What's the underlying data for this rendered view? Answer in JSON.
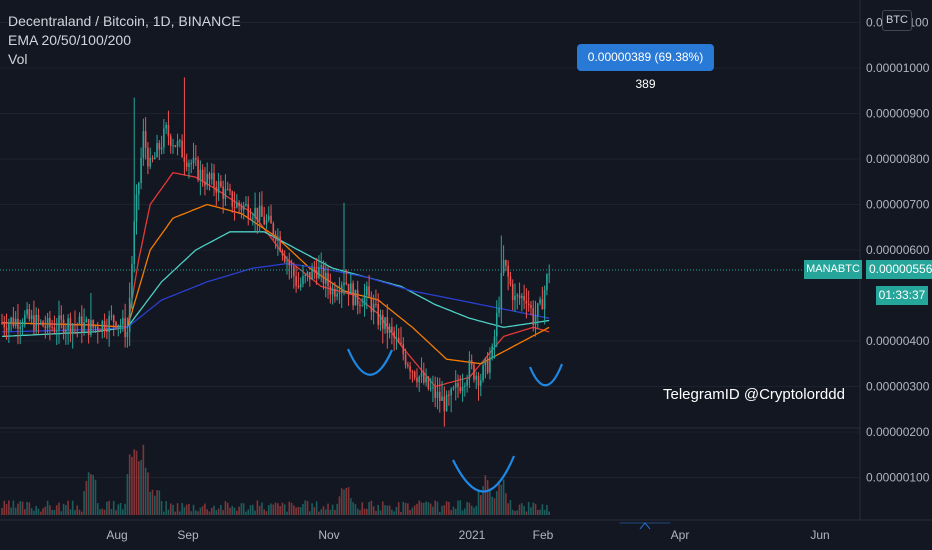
{
  "legend": {
    "title": "Decentraland / Bitcoin, 1D, BINANCE",
    "indicator": "EMA 20/50/100/200",
    "volume": "Vol"
  },
  "currency": "BTC",
  "symbol_tag": "MANABTC",
  "price_tag": "0.00000556",
  "countdown": "01:33:37",
  "measure_label": "0.00000389 (69.38%) 389",
  "watermark": "TelegramID @Cryptolorddd",
  "colors": {
    "background": "#131722",
    "up": "#26a69a",
    "down": "#ef5350",
    "ema20": "#e53935",
    "ema50": "#f57c00",
    "ema100": "#4dd0c4",
    "ema200": "#2a3fcf",
    "measure": "#2979d6",
    "annotation": "#1e88e5"
  },
  "chart_data": {
    "type": "candlestick",
    "price_axis": {
      "ticks": [
        "0.00001100",
        "0.00001000",
        "0.00000900",
        "0.00000800",
        "0.00000700",
        "0.00000600",
        "0.00000400",
        "0.00000300",
        "0.00000200",
        "0.00000100"
      ],
      "current_price": 5.56e-06
    },
    "time_axis": {
      "ticks": [
        "Aug",
        "Sep",
        "Nov",
        "2021",
        "Feb",
        "Apr",
        "Jun"
      ]
    },
    "measure": {
      "from": 5.56e-06,
      "to": 9.45e-06,
      "change": "0.00000389",
      "percent": "69.38%",
      "bars": 389
    },
    "price_path_t": [
      0,
      10,
      20,
      30,
      40,
      50,
      55,
      58,
      62,
      65,
      72,
      80,
      88,
      95,
      102,
      110,
      120,
      130,
      138,
      145,
      150,
      155,
      160,
      165,
      170,
      175,
      180,
      188,
      195,
      200,
      205,
      210,
      215,
      220,
      225,
      230,
      233,
      236,
      240
    ],
    "price_path_v": [
      4.4,
      4.5,
      4.3,
      4.4,
      4.3,
      4.5,
      4.2,
      6.5,
      8.5,
      7.8,
      8.6,
      8.1,
      7.6,
      7.4,
      7.0,
      6.9,
      6.4,
      5.2,
      5.6,
      5.1,
      5.4,
      4.9,
      5.0,
      4.5,
      4.2,
      3.8,
      3.4,
      2.9,
      2.6,
      3.0,
      3.4,
      3.2,
      3.7,
      5.7,
      4.9,
      5.0,
      4.5,
      4.7,
      5.56
    ],
    "ema20_t": [
      0,
      40,
      55,
      60,
      65,
      75,
      85,
      95,
      110,
      125,
      140,
      155,
      165,
      175,
      190,
      205,
      220,
      233,
      240
    ],
    "ema20_v": [
      4.4,
      4.35,
      4.3,
      5.8,
      7.0,
      7.7,
      7.6,
      7.3,
      6.8,
      5.8,
      5.2,
      5.0,
      4.6,
      3.9,
      3.0,
      3.2,
      4.1,
      4.3,
      4.2
    ],
    "ema50_t": [
      0,
      40,
      55,
      65,
      75,
      90,
      105,
      120,
      135,
      150,
      165,
      180,
      195,
      210,
      225,
      240
    ],
    "ema50_v": [
      4.4,
      4.35,
      4.3,
      6.0,
      6.7,
      7.0,
      6.8,
      6.3,
      5.6,
      5.1,
      4.9,
      4.3,
      3.6,
      3.5,
      3.9,
      4.3
    ],
    "ema100_t": [
      0,
      40,
      55,
      70,
      85,
      100,
      115,
      130,
      145,
      160,
      175,
      190,
      205,
      220,
      240
    ],
    "ema100_v": [
      4.1,
      4.2,
      4.3,
      5.3,
      6.0,
      6.4,
      6.4,
      6.0,
      5.6,
      5.4,
      5.2,
      4.8,
      4.5,
      4.3,
      4.45
    ],
    "ema200_t": [
      0,
      40,
      55,
      70,
      90,
      110,
      125,
      140,
      160,
      180,
      200,
      220,
      240
    ],
    "ema200_v": [
      4.2,
      4.25,
      4.3,
      4.9,
      5.3,
      5.6,
      5.7,
      5.6,
      5.4,
      5.1,
      4.9,
      4.7,
      4.5
    ],
    "volume_spikes": [
      {
        "t": 58,
        "v": 1.0
      },
      {
        "t": 39,
        "v": 0.5
      },
      {
        "t": 62,
        "v": 0.55
      },
      {
        "t": 150,
        "v": 0.3
      },
      {
        "t": 212,
        "v": 0.35
      },
      {
        "t": 219,
        "v": 0.4
      }
    ]
  }
}
